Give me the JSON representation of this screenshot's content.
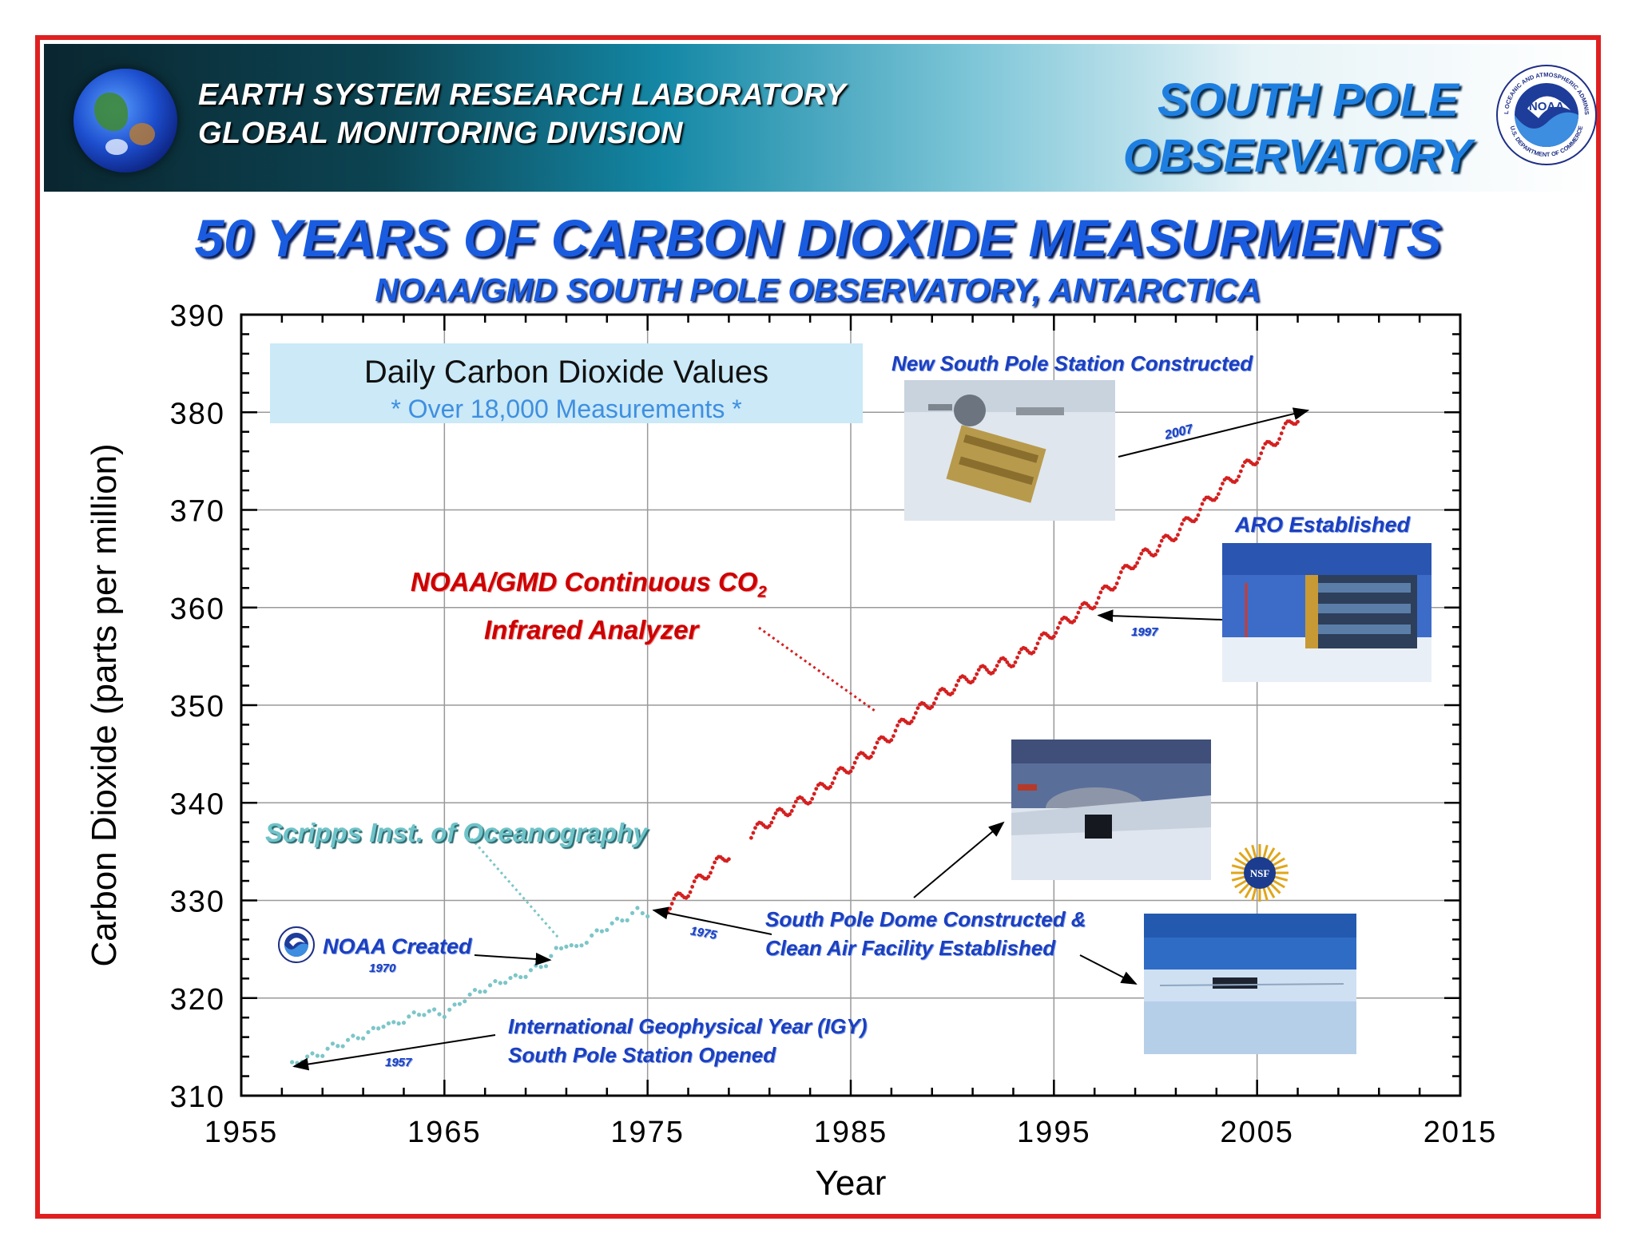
{
  "header": {
    "lab_line1": "EARTH SYSTEM RESEARCH LABORATORY",
    "lab_line2": "GLOBAL MONITORING DIVISION",
    "observatory_line1": "SOUTH POLE",
    "observatory_line2": "OBSERVATORY",
    "logo_text": "NOAA",
    "logo_ring_top": "NATIONAL OCEANIC AND ATMOSPHERIC ADMINISTRATION",
    "logo_ring_bottom": "U.S. DEPARTMENT OF COMMERCE"
  },
  "title": "50 YEARS OF CARBON DIOXIDE MEASURMENTS",
  "subtitle": "NOAA/GMD SOUTH POLE OBSERVATORY, ANTARCTICA",
  "legend": {
    "line1": "Daily Carbon Dioxide Values",
    "line2": "* Over 18,000 Measurements *"
  },
  "annotations": {
    "new_station": "New South Pole Station Constructed",
    "new_station_year": "2007",
    "aro": "ARO Established",
    "aro_year": "1997",
    "noaa_gmd_line1": "NOAA/GMD Continuous CO",
    "noaa_gmd_sub": "2",
    "noaa_gmd_line2": "Infrared Analyzer",
    "scripps": "Scripps Inst. of Oceanography",
    "noaa_created": "NOAA Created",
    "noaa_created_year": "1970",
    "dome_line1": "South Pole Dome Constructed &",
    "dome_line2": "Clean Air Facility Established",
    "dome_year": "1975",
    "igy_line1": "International Geophysical Year  (IGY)",
    "igy_line2": "South Pole Station Opened",
    "igy_year": "1957",
    "nsf_logo_text": "NSF"
  },
  "colors": {
    "frame": "#e02020",
    "scripps_series": "#7cc6c8",
    "noaa_series": "#d42020",
    "title_blue": "#1a5ce0",
    "annotation_blue": "#1c3fbf"
  },
  "chart_data": {
    "type": "scatter",
    "xlabel": "Year",
    "ylabel": "Carbon Dioxide (parts per million)",
    "xlim": [
      1955,
      2015
    ],
    "ylim": [
      310,
      390
    ],
    "xticks": [
      1955,
      1965,
      1975,
      1985,
      1995,
      2005,
      2015
    ],
    "yticks": [
      310,
      320,
      330,
      340,
      350,
      360,
      370,
      380,
      390
    ],
    "grid": true,
    "series": [
      {
        "name": "Scripps Inst. of Oceanography",
        "color": "#7cc6c8",
        "x_range": [
          1957.5,
          1975.0
        ],
        "points": [
          [
            1957.5,
            313.1
          ],
          [
            1958.0,
            313.8
          ],
          [
            1958.5,
            314.0
          ],
          [
            1959.0,
            314.4
          ],
          [
            1959.5,
            315.0
          ],
          [
            1960.5,
            315.8
          ],
          [
            1961.0,
            316.2
          ],
          [
            1961.5,
            316.6
          ],
          [
            1962.0,
            317.4
          ],
          [
            1962.5,
            317.2
          ],
          [
            1963.0,
            317.8
          ],
          [
            1963.5,
            318.2
          ],
          [
            1964.0,
            318.6
          ],
          [
            1965.0,
            318.4
          ],
          [
            1965.5,
            319.0
          ],
          [
            1966.0,
            320.0
          ],
          [
            1966.5,
            320.5
          ],
          [
            1967.0,
            321.0
          ],
          [
            1967.5,
            321.4
          ],
          [
            1968.0,
            321.9
          ],
          [
            1968.5,
            322.0
          ],
          [
            1969.0,
            322.5
          ],
          [
            1969.5,
            323.0
          ],
          [
            1970.0,
            323.6
          ],
          [
            1970.5,
            324.8
          ],
          [
            1971.0,
            325.6
          ],
          [
            1971.5,
            325.0
          ],
          [
            1972.0,
            326.0
          ],
          [
            1972.5,
            326.6
          ],
          [
            1973.0,
            327.3
          ],
          [
            1973.5,
            327.8
          ],
          [
            1974.0,
            328.3
          ],
          [
            1974.5,
            328.9
          ],
          [
            1975.0,
            328.7
          ]
        ]
      },
      {
        "name": "NOAA/GMD Continuous CO2 Infrared Analyzer",
        "color": "#d42020",
        "x_range": [
          1975.8,
          2007.0
        ],
        "gaps": [
          [
            1979.0,
            1980.0
          ]
        ],
        "points": [
          [
            1975.8,
            329.0
          ],
          [
            1977.0,
            331.0
          ],
          [
            1978.0,
            333.0
          ],
          [
            1979.0,
            334.8
          ],
          [
            1980.0,
            336.6
          ],
          [
            1981.0,
            338.2
          ],
          [
            1982.0,
            339.4
          ],
          [
            1983.0,
            340.6
          ],
          [
            1984.0,
            342.2
          ],
          [
            1985.0,
            343.8
          ],
          [
            1986.0,
            345.3
          ],
          [
            1987.0,
            347.0
          ],
          [
            1988.0,
            348.9
          ],
          [
            1989.0,
            350.4
          ],
          [
            1990.0,
            351.8
          ],
          [
            1991.0,
            353.0
          ],
          [
            1992.0,
            353.9
          ],
          [
            1993.0,
            354.6
          ],
          [
            1994.0,
            356.0
          ],
          [
            1995.0,
            357.6
          ],
          [
            1996.0,
            359.2
          ],
          [
            1997.0,
            360.6
          ],
          [
            1998.0,
            362.6
          ],
          [
            1999.0,
            364.8
          ],
          [
            2000.0,
            366.0
          ],
          [
            2001.0,
            367.6
          ],
          [
            2002.0,
            369.6
          ],
          [
            2003.0,
            371.8
          ],
          [
            2004.0,
            373.6
          ],
          [
            2005.0,
            375.4
          ],
          [
            2006.0,
            377.4
          ],
          [
            2007.0,
            379.6
          ]
        ]
      }
    ]
  }
}
